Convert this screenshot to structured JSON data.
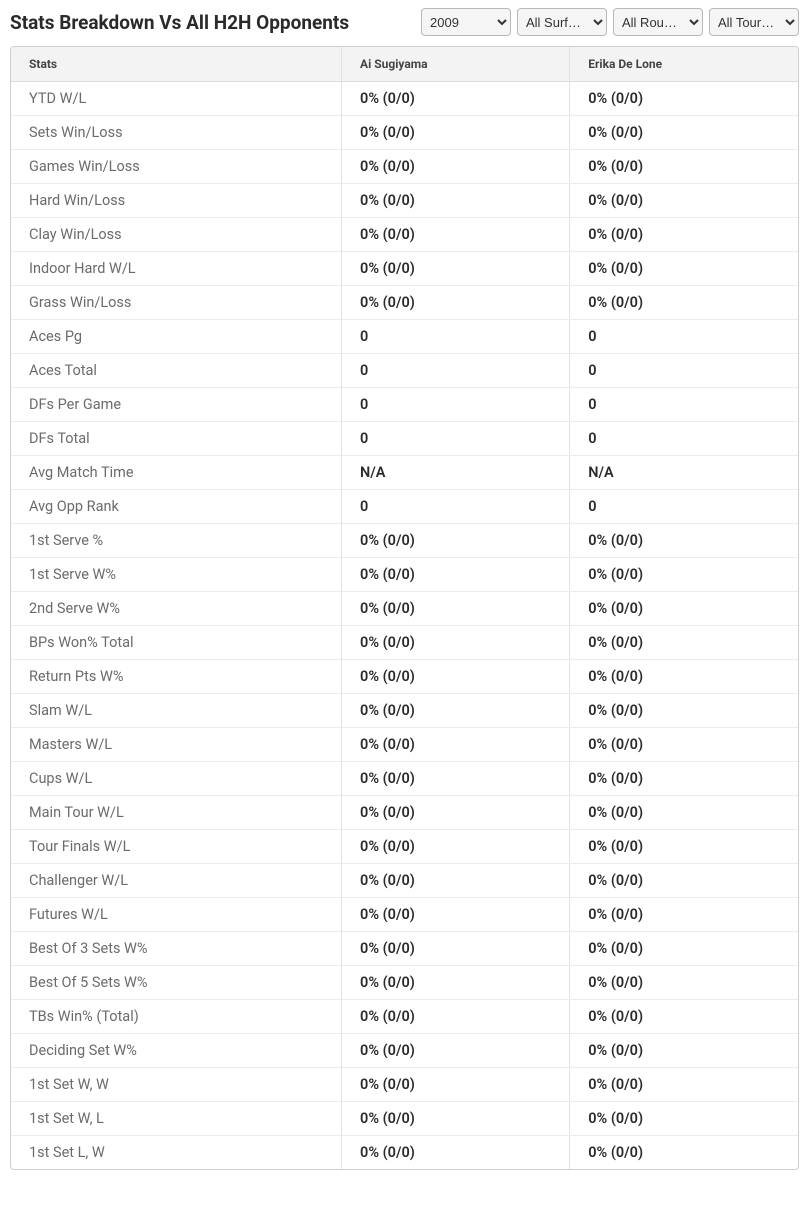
{
  "title": "Stats Breakdown Vs All H2H Opponents",
  "filters": {
    "year": {
      "selected": "2009",
      "options": [
        "2009"
      ]
    },
    "surface": {
      "selected": "All Surf…",
      "options": [
        "All Surf…"
      ]
    },
    "round": {
      "selected": "All Rou…",
      "options": [
        "All Rou…"
      ]
    },
    "tour": {
      "selected": "All Tour…",
      "options": [
        "All Tour…"
      ]
    }
  },
  "columns": {
    "stats": "Stats",
    "p1": "Ai Sugiyama",
    "p2": "Erika De Lone"
  },
  "rows": [
    {
      "label": "YTD W/L",
      "p1": "0% (0/0)",
      "p2": "0% (0/0)"
    },
    {
      "label": "Sets Win/Loss",
      "p1": "0% (0/0)",
      "p2": "0% (0/0)"
    },
    {
      "label": "Games Win/Loss",
      "p1": "0% (0/0)",
      "p2": "0% (0/0)"
    },
    {
      "label": "Hard Win/Loss",
      "p1": "0% (0/0)",
      "p2": "0% (0/0)"
    },
    {
      "label": "Clay Win/Loss",
      "p1": "0% (0/0)",
      "p2": "0% (0/0)"
    },
    {
      "label": "Indoor Hard W/L",
      "p1": "0% (0/0)",
      "p2": "0% (0/0)"
    },
    {
      "label": "Grass Win/Loss",
      "p1": "0% (0/0)",
      "p2": "0% (0/0)"
    },
    {
      "label": "Aces Pg",
      "p1": "0",
      "p2": "0"
    },
    {
      "label": "Aces Total",
      "p1": "0",
      "p2": "0"
    },
    {
      "label": "DFs Per Game",
      "p1": "0",
      "p2": "0"
    },
    {
      "label": "DFs Total",
      "p1": "0",
      "p2": "0"
    },
    {
      "label": "Avg Match Time",
      "p1": "N/A",
      "p2": "N/A"
    },
    {
      "label": "Avg Opp Rank",
      "p1": "0",
      "p2": "0"
    },
    {
      "label": "1st Serve %",
      "p1": "0% (0/0)",
      "p2": "0% (0/0)"
    },
    {
      "label": "1st Serve W%",
      "p1": "0% (0/0)",
      "p2": "0% (0/0)"
    },
    {
      "label": "2nd Serve W%",
      "p1": "0% (0/0)",
      "p2": "0% (0/0)"
    },
    {
      "label": "BPs Won% Total",
      "p1": "0% (0/0)",
      "p2": "0% (0/0)"
    },
    {
      "label": "Return Pts W%",
      "p1": "0% (0/0)",
      "p2": "0% (0/0)"
    },
    {
      "label": "Slam W/L",
      "p1": "0% (0/0)",
      "p2": "0% (0/0)"
    },
    {
      "label": "Masters W/L",
      "p1": "0% (0/0)",
      "p2": "0% (0/0)"
    },
    {
      "label": "Cups W/L",
      "p1": "0% (0/0)",
      "p2": "0% (0/0)"
    },
    {
      "label": "Main Tour W/L",
      "p1": "0% (0/0)",
      "p2": "0% (0/0)"
    },
    {
      "label": "Tour Finals W/L",
      "p1": "0% (0/0)",
      "p2": "0% (0/0)"
    },
    {
      "label": "Challenger W/L",
      "p1": "0% (0/0)",
      "p2": "0% (0/0)"
    },
    {
      "label": "Futures W/L",
      "p1": "0% (0/0)",
      "p2": "0% (0/0)"
    },
    {
      "label": "Best Of 3 Sets W%",
      "p1": "0% (0/0)",
      "p2": "0% (0/0)"
    },
    {
      "label": "Best Of 5 Sets W%",
      "p1": "0% (0/0)",
      "p2": "0% (0/0)"
    },
    {
      "label": "TBs Win% (Total)",
      "p1": "0% (0/0)",
      "p2": "0% (0/0)"
    },
    {
      "label": "Deciding Set W%",
      "p1": "0% (0/0)",
      "p2": "0% (0/0)"
    },
    {
      "label": "1st Set W, W",
      "p1": "0% (0/0)",
      "p2": "0% (0/0)"
    },
    {
      "label": "1st Set W, L",
      "p1": "0% (0/0)",
      "p2": "0% (0/0)"
    },
    {
      "label": "1st Set L, W",
      "p1": "0% (0/0)",
      "p2": "0% (0/0)"
    }
  ],
  "styling": {
    "header_bg": "#f3f3f3",
    "border_color": "#cfcfcf",
    "row_border": "#ececec",
    "label_color": "#6b6b6b",
    "value_color": "#2a2a2a",
    "title_color": "#2a2a2a",
    "title_fontsize": 19,
    "th_fontsize": 12,
    "td_fontsize": 14.5
  }
}
